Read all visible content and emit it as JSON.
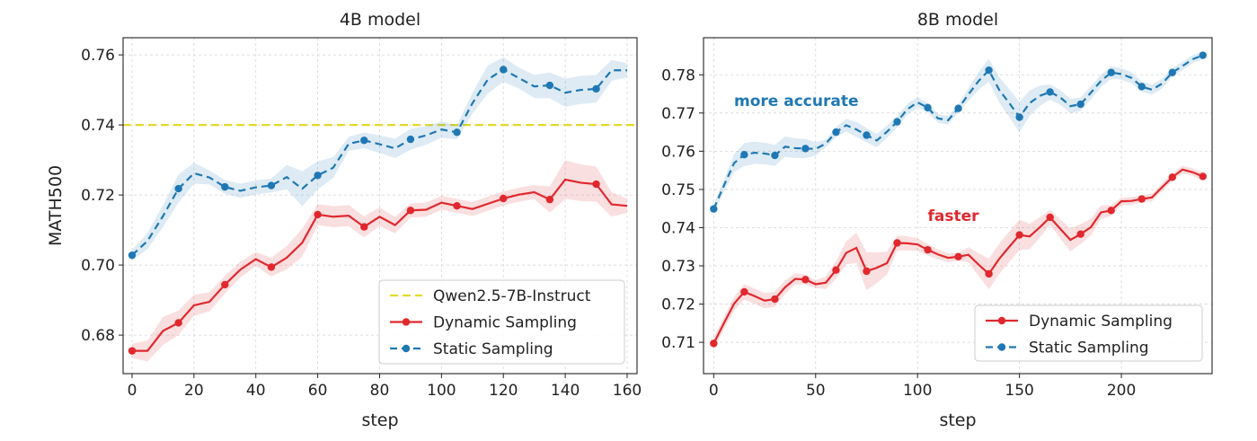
{
  "chart_data": [
    {
      "type": "line",
      "title": "4B model",
      "xlabel": "step",
      "ylabel": "MATH500",
      "xlim": [
        -2.9,
        163.2
      ],
      "ylim": [
        0.669,
        0.7649
      ],
      "xticks": [
        0,
        20,
        40,
        60,
        80,
        100,
        120,
        140,
        160
      ],
      "yticks": [
        0.68,
        0.7,
        0.72,
        0.74,
        0.76
      ],
      "ytick_format": 2,
      "grid": true,
      "legend": "bottom-right",
      "hlines": [
        {
          "name": "Qwen2.5-7B-Instruct",
          "y": 0.74,
          "color": "#e5d92b"
        }
      ],
      "x": [
        0,
        5,
        10,
        15,
        20,
        25,
        30,
        35,
        40,
        45,
        50,
        55,
        60,
        65,
        70,
        75,
        80,
        85,
        90,
        95,
        100,
        105,
        110,
        115,
        120,
        125,
        130,
        135,
        140,
        145,
        150,
        155,
        160
      ],
      "marker_every": 3,
      "series": [
        {
          "name": "Dynamic Sampling",
          "color": "#e0282e",
          "dashed": false,
          "values": [
            0.6755,
            0.6755,
            0.6812,
            0.6835,
            0.6885,
            0.6895,
            0.6944,
            0.6987,
            0.7017,
            0.6994,
            0.7021,
            0.7064,
            0.7144,
            0.7138,
            0.7141,
            0.7109,
            0.7138,
            0.7114,
            0.7156,
            0.7158,
            0.7178,
            0.7169,
            0.716,
            0.7175,
            0.719,
            0.7201,
            0.7208,
            0.7187,
            0.7244,
            0.7235,
            0.7231,
            0.7173,
            0.7169
          ],
          "band": [
            [
              0,
              0.002
            ],
            [
              10,
              0.004
            ],
            [
              20,
              0.003
            ],
            [
              40,
              0.002
            ],
            [
              55,
              0.004
            ],
            [
              60,
              0.003
            ],
            [
              75,
              0.003
            ],
            [
              90,
              0.002
            ],
            [
              130,
              0.002
            ],
            [
              140,
              0.0055
            ],
            [
              150,
              0.005
            ],
            [
              160,
              0.002
            ]
          ]
        },
        {
          "name": "Static Sampling",
          "color": "#1f78b4",
          "dashed": true,
          "values": [
            0.7028,
            0.7069,
            0.714,
            0.7218,
            0.7262,
            0.725,
            0.7223,
            0.7212,
            0.7222,
            0.7227,
            0.7251,
            0.7218,
            0.7256,
            0.7278,
            0.7346,
            0.7356,
            0.7345,
            0.7333,
            0.7359,
            0.737,
            0.7387,
            0.7379,
            0.7462,
            0.753,
            0.7558,
            0.7534,
            0.751,
            0.7513,
            0.7492,
            0.75,
            0.7503,
            0.7556,
            0.7556
          ],
          "band": [
            [
              0,
              0.0015
            ],
            [
              15,
              0.004
            ],
            [
              25,
              0.002
            ],
            [
              45,
              0.002
            ],
            [
              55,
              0.005
            ],
            [
              60,
              0.004
            ],
            [
              70,
              0.002
            ],
            [
              90,
              0.003
            ],
            [
              105,
              0.002
            ],
            [
              115,
              0.004
            ],
            [
              125,
              0.003
            ],
            [
              140,
              0.004
            ],
            [
              150,
              0.004
            ],
            [
              160,
              0.002
            ]
          ]
        }
      ]
    },
    {
      "type": "line",
      "title": "8B model",
      "xlabel": "step",
      "ylabel": "",
      "xlim": [
        -5,
        244.5
      ],
      "ylim": [
        0.7018,
        0.7897
      ],
      "xticks": [
        0,
        50,
        100,
        150,
        200
      ],
      "yticks": [
        0.71,
        0.72,
        0.73,
        0.74,
        0.75,
        0.76,
        0.77,
        0.78
      ],
      "ytick_format": 2,
      "grid": true,
      "legend": "bottom-right",
      "hlines": [],
      "annotations": [
        {
          "text": "more accurate",
          "x": 10,
          "y": 0.7718,
          "color": "#1f78b4"
        },
        {
          "text": "faster",
          "x": 105,
          "y": 0.7418,
          "color": "#e0282e"
        }
      ],
      "x": [
        0,
        5,
        10,
        15,
        20,
        25,
        30,
        35,
        40,
        45,
        50,
        55,
        60,
        65,
        70,
        75,
        80,
        85,
        90,
        95,
        100,
        105,
        110,
        115,
        120,
        125,
        130,
        135,
        140,
        145,
        150,
        155,
        160,
        165,
        170,
        175,
        180,
        185,
        190,
        195,
        200,
        205,
        210,
        215,
        220,
        225,
        230,
        235,
        240
      ],
      "marker_every": 3,
      "series": [
        {
          "name": "Dynamic Sampling",
          "color": "#e0282e",
          "dashed": false,
          "values": [
            0.7097,
            0.715,
            0.7201,
            0.7232,
            0.7221,
            0.7209,
            0.7213,
            0.7244,
            0.7266,
            0.7264,
            0.7252,
            0.7256,
            0.7289,
            0.7334,
            0.7347,
            0.7286,
            0.7295,
            0.7307,
            0.736,
            0.7359,
            0.7356,
            0.7342,
            0.733,
            0.7321,
            0.7324,
            0.7329,
            0.7303,
            0.7279,
            0.7318,
            0.735,
            0.7381,
            0.7377,
            0.7401,
            0.7427,
            0.7397,
            0.7368,
            0.7383,
            0.7401,
            0.744,
            0.7445,
            0.7469,
            0.747,
            0.7475,
            0.7479,
            0.7506,
            0.7532,
            0.7552,
            0.7545,
            0.7534
          ],
          "band": [
            [
              0,
              0.0015
            ],
            [
              15,
              0.002
            ],
            [
              30,
              0.002
            ],
            [
              50,
              0.001
            ],
            [
              65,
              0.003
            ],
            [
              75,
              0.005
            ],
            [
              90,
              0.002
            ],
            [
              120,
              0.001
            ],
            [
              135,
              0.004
            ],
            [
              150,
              0.004
            ],
            [
              165,
              0.002
            ],
            [
              175,
              0.003
            ],
            [
              200,
              0.001
            ],
            [
              240,
              0.001
            ]
          ]
        },
        {
          "name": "Static Sampling",
          "color": "#1f78b4",
          "dashed": true,
          "values": [
            0.7449,
            0.751,
            0.7569,
            0.7591,
            0.7596,
            0.7594,
            0.7589,
            0.7612,
            0.7608,
            0.7607,
            0.7606,
            0.762,
            0.765,
            0.7668,
            0.7657,
            0.7642,
            0.7628,
            0.7651,
            0.7677,
            0.771,
            0.7728,
            0.7714,
            0.7686,
            0.7681,
            0.7712,
            0.7749,
            0.7784,
            0.7812,
            0.7761,
            0.7726,
            0.7689,
            0.7726,
            0.7745,
            0.7755,
            0.7741,
            0.7718,
            0.7723,
            0.7753,
            0.7784,
            0.7806,
            0.7802,
            0.7792,
            0.7769,
            0.7761,
            0.7777,
            0.7806,
            0.7823,
            0.7841,
            0.7851
          ],
          "band": [
            [
              0,
              0.001
            ],
            [
              15,
              0.003
            ],
            [
              45,
              0.0025
            ],
            [
              55,
              0.001
            ],
            [
              70,
              0.002
            ],
            [
              90,
              0.0015
            ],
            [
              120,
              0.001
            ],
            [
              135,
              0.003
            ],
            [
              150,
              0.004
            ],
            [
              165,
              0.002
            ],
            [
              200,
              0.0015
            ],
            [
              240,
              0.001
            ]
          ]
        }
      ]
    }
  ]
}
